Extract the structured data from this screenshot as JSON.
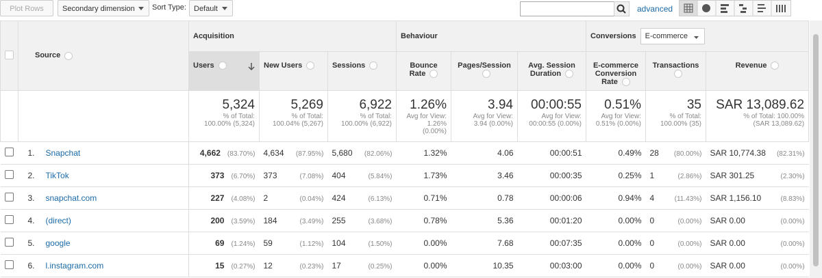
{
  "toolbar": {
    "plot_rows": "Plot Rows",
    "secondary_dimension": "Secondary dimension",
    "sort_type_label": "Sort Type:",
    "sort_type": "Default",
    "advanced": "advanced"
  },
  "table": {
    "source_header": "Source",
    "groups": [
      "Acquisition",
      "Behaviour",
      "Conversions"
    ],
    "conversion_select": "E-commerce",
    "columns": [
      "Users",
      "New Users",
      "Sessions",
      "Bounce Rate",
      "Pages/Session",
      "Avg. Session Duration",
      "E-commerce Conversion Rate",
      "Transactions",
      "Revenue"
    ],
    "totals": [
      {
        "value": "5,324",
        "sub": [
          "% of Total:",
          "100.00% (5,324)"
        ]
      },
      {
        "value": "5,269",
        "sub": [
          "% of Total:",
          "100.04% (5,267)"
        ]
      },
      {
        "value": "6,922",
        "sub": [
          "% of Total:",
          "100.00% (6,922)"
        ]
      },
      {
        "value": "1.26%",
        "sub": [
          "Avg for View:",
          "1.26%",
          "(0.00%)"
        ]
      },
      {
        "value": "3.94",
        "sub": [
          "Avg for View:",
          "3.94 (0.00%)"
        ]
      },
      {
        "value": "00:00:55",
        "sub": [
          "Avg for View:",
          "00:00:55 (0.00%)"
        ]
      },
      {
        "value": "0.51%",
        "sub": [
          "Avg for View:",
          "0.51% (0.00%)"
        ]
      },
      {
        "value": "35",
        "sub": [
          "% of Total:",
          "100.00% (35)"
        ]
      },
      {
        "value": "SAR 13,089.62",
        "sub": [
          "% of Total: 100.00%",
          "(SAR 13,089.62)"
        ]
      }
    ],
    "rows": [
      {
        "rank": "1.",
        "source": "Snapchat",
        "cells": [
          [
            "4,662",
            "(83.70%)"
          ],
          [
            "4,634",
            "(87.95%)"
          ],
          [
            "5,680",
            "(82.06%)"
          ],
          [
            "1.32%"
          ],
          [
            "4.06"
          ],
          [
            "00:00:51"
          ],
          [
            "0.49%"
          ],
          [
            "28",
            "(80.00%)"
          ],
          [
            "SAR 10,774.38",
            "(82.31%)"
          ]
        ]
      },
      {
        "rank": "2.",
        "source": "TikTok",
        "cells": [
          [
            "373",
            "(6.70%)"
          ],
          [
            "373",
            "(7.08%)"
          ],
          [
            "404",
            "(5.84%)"
          ],
          [
            "1.73%"
          ],
          [
            "3.46"
          ],
          [
            "00:00:35"
          ],
          [
            "0.25%"
          ],
          [
            "1",
            "(2.86%)"
          ],
          [
            "SAR 301.25",
            "(2.30%)"
          ]
        ]
      },
      {
        "rank": "3.",
        "source": "snapchat.com",
        "cells": [
          [
            "227",
            "(4.08%)"
          ],
          [
            "2",
            "(0.04%)"
          ],
          [
            "424",
            "(6.13%)"
          ],
          [
            "0.71%"
          ],
          [
            "0.78"
          ],
          [
            "00:00:06"
          ],
          [
            "0.94%"
          ],
          [
            "4",
            "(11.43%)"
          ],
          [
            "SAR 1,156.10",
            "(8.83%)"
          ]
        ]
      },
      {
        "rank": "4.",
        "source": "(direct)",
        "cells": [
          [
            "200",
            "(3.59%)"
          ],
          [
            "184",
            "(3.49%)"
          ],
          [
            "255",
            "(3.68%)"
          ],
          [
            "0.78%"
          ],
          [
            "5.36"
          ],
          [
            "00:01:20"
          ],
          [
            "0.00%"
          ],
          [
            "0",
            "(0.00%)"
          ],
          [
            "SAR 0.00",
            "(0.00%)"
          ]
        ]
      },
      {
        "rank": "5.",
        "source": "google",
        "cells": [
          [
            "69",
            "(1.24%)"
          ],
          [
            "59",
            "(1.12%)"
          ],
          [
            "104",
            "(1.50%)"
          ],
          [
            "0.00%"
          ],
          [
            "7.68"
          ],
          [
            "00:07:35"
          ],
          [
            "0.00%"
          ],
          [
            "0",
            "(0.00%)"
          ],
          [
            "SAR 0.00",
            "(0.00%)"
          ]
        ]
      },
      {
        "rank": "6.",
        "source": "l.instagram.com",
        "cells": [
          [
            "15",
            "(0.27%)"
          ],
          [
            "12",
            "(0.23%)"
          ],
          [
            "17",
            "(0.25%)"
          ],
          [
            "0.00%"
          ],
          [
            "10.35"
          ],
          [
            "00:03:00"
          ],
          [
            "0.00%"
          ],
          [
            "0",
            "(0.00%)"
          ],
          [
            "SAR 0.00",
            "(0.00%)"
          ]
        ]
      }
    ]
  }
}
